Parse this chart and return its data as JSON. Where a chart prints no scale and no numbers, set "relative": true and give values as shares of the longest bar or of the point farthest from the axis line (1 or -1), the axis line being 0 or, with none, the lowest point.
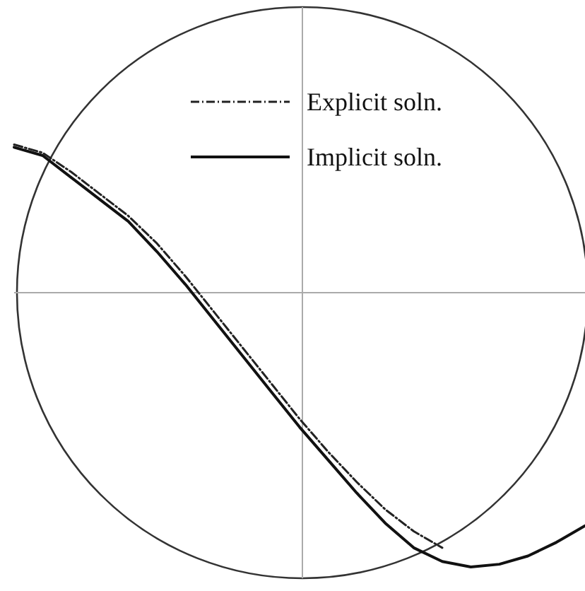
{
  "chart_data": {
    "type": "line",
    "relative": true,
    "legend": "top right",
    "tick_labels": false,
    "categories": [
      null,
      null,
      null,
      null,
      null,
      null,
      null,
      null,
      null,
      null,
      null,
      null,
      null,
      null,
      null,
      null,
      null,
      null,
      null,
      null,
      null
    ],
    "series": [
      {
        "name": "Explicit soln.",
        "color": "#222222",
        "line_style": "dashed",
        "values": [
          0.54,
          0.51,
          0.44,
          0.36,
          0.28,
          0.18,
          0.06,
          -0.07,
          -0.2,
          -0.33,
          -0.46,
          -0.58,
          -0.69,
          -0.79,
          -0.87,
          -0.93,
          null,
          null,
          null,
          null,
          null
        ]
      },
      {
        "name": "Implicit soln.",
        "color": "#111111",
        "line_style": "solid",
        "values": [
          0.53,
          0.5,
          0.42,
          0.34,
          0.26,
          0.15,
          0.03,
          -0.1,
          -0.23,
          -0.36,
          -0.49,
          -0.61,
          -0.73,
          -0.84,
          -0.93,
          -0.98,
          -1,
          -0.99,
          -0.96,
          -0.91,
          -0.85
        ]
      }
    ]
  }
}
